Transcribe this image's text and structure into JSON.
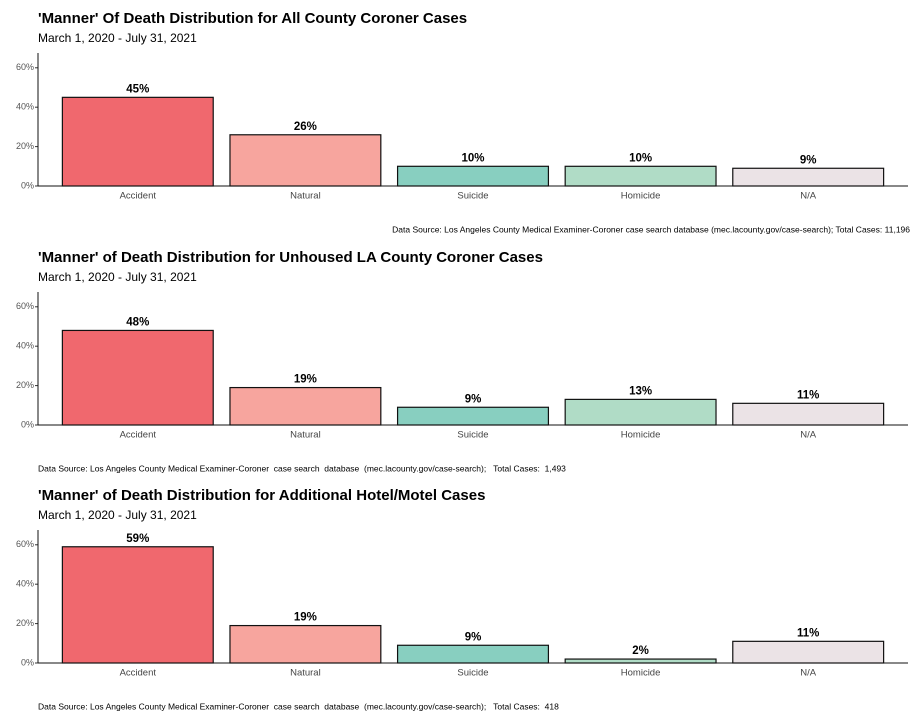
{
  "chart_data": [
    {
      "type": "bar",
      "title": "'Manner' Of Death Distribution for All County Coroner Cases",
      "subtitle": "March 1, 2020 - July 31, 2021",
      "caption": "Data Source: Los Angeles County Medical Examiner-Coroner case search database (mec.lacounty.gov/case-search); Total Cases: 11,196",
      "categories": [
        "Accident",
        "Natural",
        "Suicide",
        "Homicide",
        "N/A"
      ],
      "values": [
        45,
        26,
        10,
        10,
        9
      ],
      "value_labels": [
        "45%",
        "26%",
        "10%",
        "10%",
        "9%"
      ],
      "colors": [
        "#f0686e",
        "#f7a59e",
        "#88cfc0",
        "#b0dcc6",
        "#ebe3e6"
      ],
      "ylim": [
        0,
        67
      ],
      "yticks": [
        {
          "value": 0,
          "label": "0%"
        },
        {
          "value": 20,
          "label": "20%"
        },
        {
          "value": 40,
          "label": "40%"
        },
        {
          "value": 60,
          "label": "60%"
        }
      ]
    },
    {
      "type": "bar",
      "title": "'Manner' of Death Distribution for Unhoused LA County Coroner Cases",
      "subtitle": "March 1, 2020 - July 31, 2021",
      "caption": "Data Source: Los Angeles County Medical Examiner-Coroner  case search  database  (mec.lacounty.gov/case-search);   Total Cases:  1,493",
      "categories": [
        "Accident",
        "Natural",
        "Suicide",
        "Homicide",
        "N/A"
      ],
      "values": [
        48,
        19,
        9,
        13,
        11
      ],
      "value_labels": [
        "48%",
        "19%",
        "9%",
        "13%",
        "11%"
      ],
      "colors": [
        "#f0686e",
        "#f7a59e",
        "#88cfc0",
        "#b0dcc6",
        "#ebe3e6"
      ],
      "ylim": [
        0,
        67
      ],
      "yticks": [
        {
          "value": 0,
          "label": "0%"
        },
        {
          "value": 20,
          "label": "20%"
        },
        {
          "value": 40,
          "label": "40%"
        },
        {
          "value": 60,
          "label": "60%"
        }
      ]
    },
    {
      "type": "bar",
      "title": "'Manner' of Death Distribution for Additional Hotel/Motel Cases",
      "subtitle": "March 1, 2020 - July 31, 2021",
      "caption": "Data Source: Los Angeles County Medical Examiner-Coroner  case search  database  (mec.lacounty.gov/case-search);   Total Cases:  418",
      "categories": [
        "Accident",
        "Natural",
        "Suicide",
        "Homicide",
        "N/A"
      ],
      "values": [
        59,
        19,
        9,
        2,
        11
      ],
      "value_labels": [
        "59%",
        "19%",
        "9%",
        "2%",
        "11%"
      ],
      "colors": [
        "#f0686e",
        "#f7a59e",
        "#88cfc0",
        "#b0dcc6",
        "#ebe3e6"
      ],
      "ylim": [
        0,
        67
      ],
      "yticks": [
        {
          "value": 0,
          "label": "0%"
        },
        {
          "value": 20,
          "label": "20%"
        },
        {
          "value": 40,
          "label": "40%"
        },
        {
          "value": 60,
          "label": "60%"
        }
      ]
    }
  ]
}
